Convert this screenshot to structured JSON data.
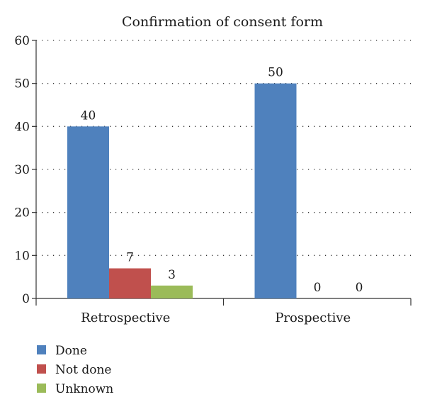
{
  "chart_data": {
    "type": "bar",
    "title": "Confirmation of consent form",
    "categories": [
      "Retrospective",
      "Prospective"
    ],
    "series": [
      {
        "name": "Done",
        "values": [
          40,
          50
        ],
        "color": "#4f81bd"
      },
      {
        "name": "Not done",
        "values": [
          7,
          0
        ],
        "color": "#c0504d"
      },
      {
        "name": "Unknown",
        "values": [
          3,
          0
        ],
        "color": "#9bbb59"
      }
    ],
    "ylim": [
      0,
      60
    ],
    "yticks": [
      0,
      10,
      20,
      30,
      40,
      50,
      60
    ],
    "grid": "dotted-horizontal",
    "legend_position": "bottom-left",
    "data_labels": true
  }
}
